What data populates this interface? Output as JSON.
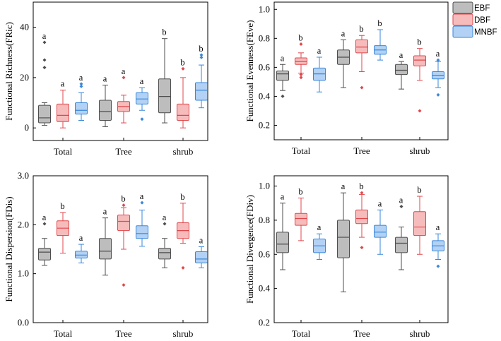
{
  "colors": {
    "EBF": {
      "fill": "#bdbdbd",
      "stroke": "#4d4d4d"
    },
    "DBF": {
      "fill": "#f6bcbc",
      "stroke": "#e0474c"
    },
    "MNBF": {
      "fill": "#b2d1f4",
      "stroke": "#3987d9"
    }
  },
  "legend": {
    "items": [
      "EBF",
      "DBF",
      "MNBF"
    ],
    "placement": "top-right"
  },
  "chart_data": [
    {
      "type": "box",
      "ylabel": "Functional Richness(FRic)",
      "ylim": [
        -5,
        50
      ],
      "yticks": [
        0,
        20,
        40
      ],
      "categories": [
        "Total",
        "Tree",
        "shrub"
      ],
      "series_names": [
        "EBF",
        "DBF",
        "MNBF"
      ],
      "boxes": [
        [
          {
            "min": 1,
            "q1": 2,
            "median": 4,
            "q3": 9,
            "max": 10,
            "outliers": [
              24,
              27,
              34
            ],
            "label": "a"
          },
          {
            "min": 0,
            "q1": 2.5,
            "median": 5,
            "q3": 9.5,
            "max": 15,
            "outliers": [],
            "label": "a"
          },
          {
            "min": 3,
            "q1": 5.5,
            "median": 7,
            "q3": 10,
            "max": 14,
            "outliers": [
              16.5,
              17.5
            ],
            "label": "a"
          }
        ],
        [
          {
            "min": 0.5,
            "q1": 3,
            "median": 6.5,
            "q3": 11,
            "max": 17,
            "outliers": [],
            "label": "a"
          },
          {
            "min": 2,
            "q1": 6.5,
            "median": 8.5,
            "q3": 10.5,
            "max": 13,
            "outliers": [
              20
            ],
            "label": "a"
          },
          {
            "min": 7,
            "q1": 9.5,
            "median": 11.5,
            "q3": 14,
            "max": 16,
            "outliers": [
              3.5
            ],
            "label": "a"
          }
        ],
        [
          {
            "min": 2,
            "q1": 6,
            "median": 12.5,
            "q3": 19.5,
            "max": 35.5,
            "outliers": [],
            "label": "b"
          },
          {
            "min": 0,
            "q1": 3,
            "median": 5,
            "q3": 9.5,
            "max": 20,
            "outliers": [
              23.5
            ],
            "label": "b"
          },
          {
            "min": 8,
            "q1": 11,
            "median": 15,
            "q3": 18,
            "max": 25,
            "outliers": [
              28,
              29
            ],
            "label": "b"
          }
        ]
      ]
    },
    {
      "type": "box",
      "ylabel": "Functional Evenness(FEve)",
      "ylim": [
        0.1,
        1.05
      ],
      "yticks": [
        0.2,
        0.4,
        0.6,
        0.8,
        1.0
      ],
      "categories": [
        "Total",
        "Tree",
        "shrub"
      ],
      "series_names": [
        "EBF",
        "DBF",
        "MNBF"
      ],
      "boxes": [
        [
          {
            "min": 0.44,
            "q1": 0.51,
            "median": 0.555,
            "q3": 0.575,
            "max": 0.62,
            "outliers": [
              0.4
            ],
            "label": "a"
          },
          {
            "min": 0.56,
            "q1": 0.62,
            "median": 0.64,
            "q3": 0.665,
            "max": 0.7,
            "outliers": [
              0.76,
              0.53,
              0.55
            ],
            "label": "b"
          },
          {
            "min": 0.43,
            "q1": 0.51,
            "median": 0.555,
            "q3": 0.595,
            "max": 0.67,
            "outliers": [],
            "label": "a"
          }
        ],
        [
          {
            "min": 0.46,
            "q1": 0.62,
            "median": 0.67,
            "q3": 0.72,
            "max": 0.79,
            "outliers": [],
            "label": "a"
          },
          {
            "min": 0.57,
            "q1": 0.7,
            "median": 0.74,
            "q3": 0.79,
            "max": 0.82,
            "outliers": [
              0.46
            ],
            "label": "b"
          },
          {
            "min": 0.65,
            "q1": 0.69,
            "median": 0.72,
            "q3": 0.75,
            "max": 0.86,
            "outliers": [],
            "label": "b"
          }
        ],
        [
          {
            "min": 0.45,
            "q1": 0.55,
            "median": 0.58,
            "q3": 0.62,
            "max": 0.64,
            "outliers": [],
            "label": "a"
          },
          {
            "min": 0.51,
            "q1": 0.61,
            "median": 0.65,
            "q3": 0.68,
            "max": 0.73,
            "outliers": [
              0.3
            ],
            "label": "b"
          },
          {
            "min": 0.46,
            "q1": 0.52,
            "median": 0.545,
            "q3": 0.57,
            "max": 0.64,
            "outliers": [
              0.41,
              0.65
            ],
            "label": "a"
          }
        ]
      ]
    },
    {
      "type": "box",
      "ylabel": "Functional Dispersion(FDis)",
      "ylim": [
        0,
        3
      ],
      "yticks": [
        0,
        1,
        2,
        3
      ],
      "categories": [
        "Total",
        "Tree",
        "shrub"
      ],
      "series_names": [
        "EBF",
        "DBF",
        "MNBF"
      ],
      "boxes": [
        [
          {
            "min": 1.17,
            "q1": 1.28,
            "median": 1.44,
            "q3": 1.52,
            "max": 1.72,
            "outliers": [
              2.02
            ],
            "label": "a"
          },
          {
            "min": 1.42,
            "q1": 1.78,
            "median": 1.93,
            "q3": 2.08,
            "max": 2.25,
            "outliers": [],
            "label": "b"
          },
          {
            "min": 1.22,
            "q1": 1.32,
            "median": 1.38,
            "q3": 1.46,
            "max": 1.6,
            "outliers": [],
            "label": "a"
          }
        ],
        [
          {
            "min": 0.97,
            "q1": 1.3,
            "median": 1.46,
            "q3": 1.72,
            "max": 2.14,
            "outliers": [],
            "label": "a"
          },
          {
            "min": 1.5,
            "q1": 1.88,
            "median": 2.07,
            "q3": 2.2,
            "max": 2.35,
            "outliers": [
              0.77,
              2.4
            ],
            "label": "b"
          },
          {
            "min": 1.56,
            "q1": 1.72,
            "median": 1.82,
            "q3": 1.98,
            "max": 2.3,
            "outliers": [
              2.45
            ],
            "label": "a"
          }
        ],
        [
          {
            "min": 1.12,
            "q1": 1.3,
            "median": 1.43,
            "q3": 1.52,
            "max": 1.72,
            "outliers": [
              2.02
            ],
            "label": "a"
          },
          {
            "min": 1.62,
            "q1": 1.72,
            "median": 1.88,
            "q3": 2.04,
            "max": 2.44,
            "outliers": [
              1.12
            ],
            "label": "b"
          },
          {
            "min": 1.12,
            "q1": 1.22,
            "median": 1.3,
            "q3": 1.45,
            "max": 1.55,
            "outliers": [],
            "label": "a"
          }
        ]
      ]
    },
    {
      "type": "box",
      "ylabel": "Functional Divergence(FDiv)",
      "ylim": [
        0.2,
        1.06
      ],
      "yticks": [
        0.2,
        0.4,
        0.6,
        0.8,
        1.0
      ],
      "categories": [
        "Total",
        "Tree",
        "shrub"
      ],
      "series_names": [
        "EBF",
        "DBF",
        "MNBF"
      ],
      "boxes": [
        [
          {
            "min": 0.51,
            "q1": 0.61,
            "median": 0.66,
            "q3": 0.73,
            "max": 0.9,
            "outliers": [],
            "label": "a"
          },
          {
            "min": 0.68,
            "q1": 0.77,
            "median": 0.81,
            "q3": 0.84,
            "max": 0.93,
            "outliers": [],
            "label": "b"
          },
          {
            "min": 0.57,
            "q1": 0.61,
            "median": 0.65,
            "q3": 0.69,
            "max": 0.72,
            "outliers": [],
            "label": "a"
          }
        ],
        [
          {
            "min": 0.38,
            "q1": 0.58,
            "median": 0.7,
            "q3": 0.8,
            "max": 0.96,
            "outliers": [],
            "label": "a"
          },
          {
            "min": 0.7,
            "q1": 0.78,
            "median": 0.81,
            "q3": 0.86,
            "max": 0.95,
            "outliers": [
              0.64,
              0.96
            ],
            "label": "b"
          },
          {
            "min": 0.6,
            "q1": 0.7,
            "median": 0.73,
            "q3": 0.77,
            "max": 0.86,
            "outliers": [],
            "label": "a"
          }
        ],
        [
          {
            "min": 0.51,
            "q1": 0.61,
            "median": 0.665,
            "q3": 0.7,
            "max": 0.76,
            "outliers": [
              0.88
            ],
            "label": "a"
          },
          {
            "min": 0.6,
            "q1": 0.71,
            "median": 0.76,
            "q3": 0.85,
            "max": 0.94,
            "outliers": [],
            "label": "b"
          },
          {
            "min": 0.57,
            "q1": 0.62,
            "median": 0.65,
            "q3": 0.68,
            "max": 0.72,
            "outliers": [
              0.53
            ],
            "label": "a"
          }
        ]
      ]
    }
  ]
}
